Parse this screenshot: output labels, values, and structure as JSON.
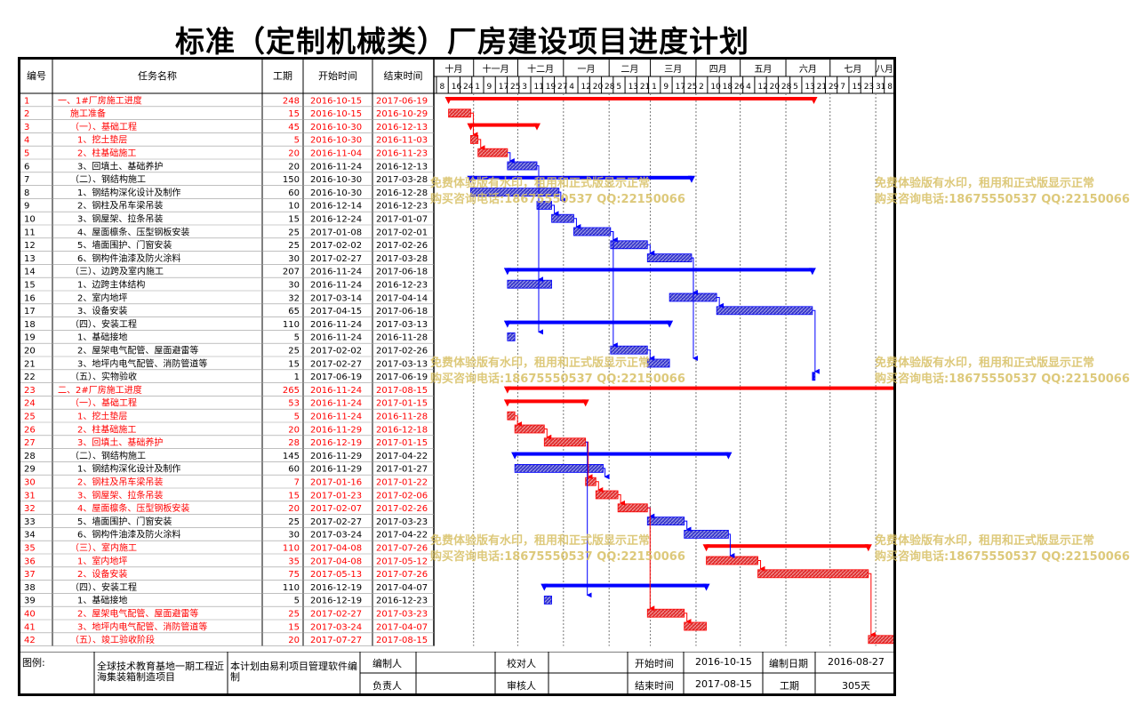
{
  "page_title": "标准（定制机械类）厂房建设项目进度计划",
  "columns": {
    "no": "编号",
    "name": "任务名称",
    "dur": "工期",
    "start": "开始时间",
    "end": "结束时间"
  },
  "months": [
    "十月",
    "十一月",
    "十二月",
    "一月",
    "二月",
    "三月",
    "四月",
    "五月",
    "六月",
    "七月",
    "八月"
  ],
  "days": [
    "8",
    "16",
    "24",
    "1",
    "9",
    "17",
    "25",
    "3",
    "11",
    "19",
    "27",
    "4",
    "12",
    "20",
    "28",
    "5",
    "13",
    "21",
    "1",
    "9",
    "17",
    "25",
    "2",
    "10",
    "18",
    "26",
    "4",
    "12",
    "20",
    "28",
    "5",
    "13",
    "21",
    "29",
    "7",
    "15",
    "23",
    "31",
    "8"
  ],
  "colors": {
    "critical": "#ff0000",
    "normal": "#0000ff",
    "text_critical": "#ff0000",
    "text_normal": "#000000"
  },
  "chart_data": {
    "type": "gantt",
    "title": "标准（定制机械类）厂房建设项目进度计划",
    "time_axis": {
      "start": "2016-10-05",
      "end": "2017-08-13",
      "unit": "day"
    },
    "tasks": [
      {
        "id": 1,
        "name": "一、1#厂房施工进度",
        "duration": 248,
        "start": "2016-10-15",
        "end": "2017-06-19",
        "summary": true,
        "critical": true
      },
      {
        "id": 2,
        "name": "施工准备",
        "duration": 15,
        "start": "2016-10-15",
        "end": "2016-10-29",
        "summary": false,
        "critical": true
      },
      {
        "id": 3,
        "name": "（一）、基础工程",
        "duration": 45,
        "start": "2016-10-30",
        "end": "2016-12-13",
        "summary": true,
        "critical": true
      },
      {
        "id": 4,
        "name": "1、挖土垫层",
        "duration": 5,
        "start": "2016-10-30",
        "end": "2016-11-03",
        "summary": false,
        "critical": true
      },
      {
        "id": 5,
        "name": "2、柱基础施工",
        "duration": 20,
        "start": "2016-11-04",
        "end": "2016-11-23",
        "summary": false,
        "critical": true
      },
      {
        "id": 6,
        "name": "3、回填土、基础养护",
        "duration": 20,
        "start": "2016-11-24",
        "end": "2016-12-13",
        "summary": false,
        "critical": false
      },
      {
        "id": 7,
        "name": "（二）、钢结构施工",
        "duration": 150,
        "start": "2016-10-30",
        "end": "2017-03-28",
        "summary": true,
        "critical": false
      },
      {
        "id": 8,
        "name": "1、钢结构深化设计及制作",
        "duration": 60,
        "start": "2016-10-30",
        "end": "2016-12-28",
        "summary": false,
        "critical": false
      },
      {
        "id": 9,
        "name": "2、钢柱及吊车梁吊装",
        "duration": 10,
        "start": "2016-12-14",
        "end": "2016-12-23",
        "summary": false,
        "critical": false
      },
      {
        "id": 10,
        "name": "3、钢屋架、拉条吊装",
        "duration": 15,
        "start": "2016-12-24",
        "end": "2017-01-07",
        "summary": false,
        "critical": false
      },
      {
        "id": 11,
        "name": "4、屋面檩条、压型钢板安装",
        "duration": 25,
        "start": "2017-01-08",
        "end": "2017-02-01",
        "summary": false,
        "critical": false
      },
      {
        "id": 12,
        "name": "5、墙面围护、门窗安装",
        "duration": 25,
        "start": "2017-02-02",
        "end": "2017-02-26",
        "summary": false,
        "critical": false
      },
      {
        "id": 13,
        "name": "6、钢构件油漆及防火涂料",
        "duration": 30,
        "start": "2017-02-27",
        "end": "2017-03-28",
        "summary": false,
        "critical": false
      },
      {
        "id": 14,
        "name": "（三）、边跨及室内施工",
        "duration": 207,
        "start": "2016-11-24",
        "end": "2017-06-18",
        "summary": true,
        "critical": false
      },
      {
        "id": 15,
        "name": "1、边跨主体结构",
        "duration": 30,
        "start": "2016-11-24",
        "end": "2016-12-23",
        "summary": false,
        "critical": false
      },
      {
        "id": 16,
        "name": "2、室内地坪",
        "duration": 32,
        "start": "2017-03-14",
        "end": "2017-04-14",
        "summary": false,
        "critical": false
      },
      {
        "id": 17,
        "name": "3、设备安装",
        "duration": 65,
        "start": "2017-04-15",
        "end": "2017-06-18",
        "summary": false,
        "critical": false
      },
      {
        "id": 18,
        "name": "（四）、安装工程",
        "duration": 110,
        "start": "2016-11-24",
        "end": "2017-03-13",
        "summary": true,
        "critical": false
      },
      {
        "id": 19,
        "name": "1、基础接地",
        "duration": 5,
        "start": "2016-11-24",
        "end": "2016-11-28",
        "summary": false,
        "critical": false
      },
      {
        "id": 20,
        "name": "2、屋架电气配管、屋面避雷等",
        "duration": 25,
        "start": "2017-02-02",
        "end": "2017-02-26",
        "summary": false,
        "critical": false
      },
      {
        "id": 21,
        "name": "3、地坪内电气配管、消防管道等",
        "duration": 15,
        "start": "2017-02-27",
        "end": "2017-03-13",
        "summary": false,
        "critical": false
      },
      {
        "id": 22,
        "name": "（五）、实物验收",
        "duration": 1,
        "start": "2017-06-19",
        "end": "2017-06-19",
        "summary": false,
        "critical": false
      },
      {
        "id": 23,
        "name": "二、2#厂房施工进度",
        "duration": 265,
        "start": "2016-11-24",
        "end": "2017-08-15",
        "summary": true,
        "critical": true
      },
      {
        "id": 24,
        "name": "（一）、基础工程",
        "duration": 53,
        "start": "2016-11-24",
        "end": "2017-01-15",
        "summary": true,
        "critical": true
      },
      {
        "id": 25,
        "name": "1、挖土垫层",
        "duration": 5,
        "start": "2016-11-24",
        "end": "2016-11-28",
        "summary": false,
        "critical": true
      },
      {
        "id": 26,
        "name": "2、柱基础施工",
        "duration": 20,
        "start": "2016-11-29",
        "end": "2016-12-18",
        "summary": false,
        "critical": true
      },
      {
        "id": 27,
        "name": "3、回填土、基础养护",
        "duration": 28,
        "start": "2016-12-19",
        "end": "2017-01-15",
        "summary": false,
        "critical": true
      },
      {
        "id": 28,
        "name": "（二）、钢结构施工",
        "duration": 145,
        "start": "2016-11-29",
        "end": "2017-04-22",
        "summary": true,
        "critical": false
      },
      {
        "id": 29,
        "name": "1、钢结构深化设计及制作",
        "duration": 60,
        "start": "2016-11-29",
        "end": "2017-01-27",
        "summary": false,
        "critical": false
      },
      {
        "id": 30,
        "name": "2、钢柱及吊车梁吊装",
        "duration": 7,
        "start": "2017-01-16",
        "end": "2017-01-22",
        "summary": false,
        "critical": true
      },
      {
        "id": 31,
        "name": "3、钢屋架、拉条吊装",
        "duration": 15,
        "start": "2017-01-23",
        "end": "2017-02-06",
        "summary": false,
        "critical": true
      },
      {
        "id": 32,
        "name": "4、屋面檩条、压型钢板安装",
        "duration": 20,
        "start": "2017-02-07",
        "end": "2017-02-26",
        "summary": false,
        "critical": true
      },
      {
        "id": 33,
        "name": "5、墙面围护、门窗安装",
        "duration": 25,
        "start": "2017-02-27",
        "end": "2017-03-23",
        "summary": false,
        "critical": false
      },
      {
        "id": 34,
        "name": "6、钢构件油漆及防火涂料",
        "duration": 30,
        "start": "2017-03-24",
        "end": "2017-04-22",
        "summary": false,
        "critical": false
      },
      {
        "id": 35,
        "name": "（三）、室内施工",
        "duration": 110,
        "start": "2017-04-08",
        "end": "2017-07-26",
        "summary": true,
        "critical": true
      },
      {
        "id": 36,
        "name": "1、室内地坪",
        "duration": 35,
        "start": "2017-04-08",
        "end": "2017-05-12",
        "summary": false,
        "critical": true
      },
      {
        "id": 37,
        "name": "2、设备安装",
        "duration": 75,
        "start": "2017-05-13",
        "end": "2017-07-26",
        "summary": false,
        "critical": true
      },
      {
        "id": 38,
        "name": "（四）、安装工程",
        "duration": 110,
        "start": "2016-12-19",
        "end": "2017-04-07",
        "summary": true,
        "critical": false
      },
      {
        "id": 39,
        "name": "1、基础接地",
        "duration": 5,
        "start": "2016-12-19",
        "end": "2016-12-23",
        "summary": false,
        "critical": false
      },
      {
        "id": 40,
        "name": "2、屋架电气配管、屋面避雷等",
        "duration": 25,
        "start": "2017-02-27",
        "end": "2017-03-23",
        "summary": false,
        "critical": true
      },
      {
        "id": 41,
        "name": "3、地坪内电气配管、消防管道等",
        "duration": 15,
        "start": "2017-03-24",
        "end": "2017-04-07",
        "summary": false,
        "critical": true
      },
      {
        "id": 42,
        "name": "（五）、竣工验收阶段",
        "duration": 20,
        "start": "2017-07-27",
        "end": "2017-08-15",
        "summary": false,
        "critical": true
      }
    ],
    "links": [
      [
        2,
        4
      ],
      [
        4,
        5
      ],
      [
        5,
        6
      ],
      [
        8,
        9
      ],
      [
        9,
        10
      ],
      [
        10,
        11
      ],
      [
        11,
        12
      ],
      [
        12,
        13
      ],
      [
        6,
        15
      ],
      [
        13,
        16
      ],
      [
        16,
        17
      ],
      [
        6,
        19
      ],
      [
        11,
        20
      ],
      [
        20,
        21
      ],
      [
        17,
        22
      ],
      [
        25,
        26
      ],
      [
        26,
        27
      ],
      [
        29,
        30
      ],
      [
        27,
        30
      ],
      [
        30,
        31
      ],
      [
        31,
        32
      ],
      [
        32,
        33
      ],
      [
        33,
        34
      ],
      [
        34,
        36
      ],
      [
        36,
        37
      ],
      [
        37,
        42
      ],
      [
        27,
        39
      ],
      [
        32,
        40
      ],
      [
        40,
        41
      ],
      [
        13,
        21
      ]
    ]
  },
  "watermark": {
    "line1": "免费体验版有水印，租用和正式版显示正常",
    "line2": "购买咨询电话:18675550537 QQ:22150066"
  },
  "footer": {
    "legend_label": "图例:",
    "project_name": "全球技术教育基地一期工程近海集装箱制造项目",
    "software_note": "本计划由易利项目管理软件编制",
    "editor_label": "编制人",
    "checker_label": "校对人",
    "owner_label": "负责人",
    "reviewer_label": "审核人",
    "start_label": "开始时间",
    "start_value": "2016-10-15",
    "compile_date_label": "编制日期",
    "compile_date_value": "2016-08-27",
    "end_label": "结束时间",
    "end_value": "2017-08-15",
    "duration_label": "工期",
    "duration_value": "305天"
  }
}
